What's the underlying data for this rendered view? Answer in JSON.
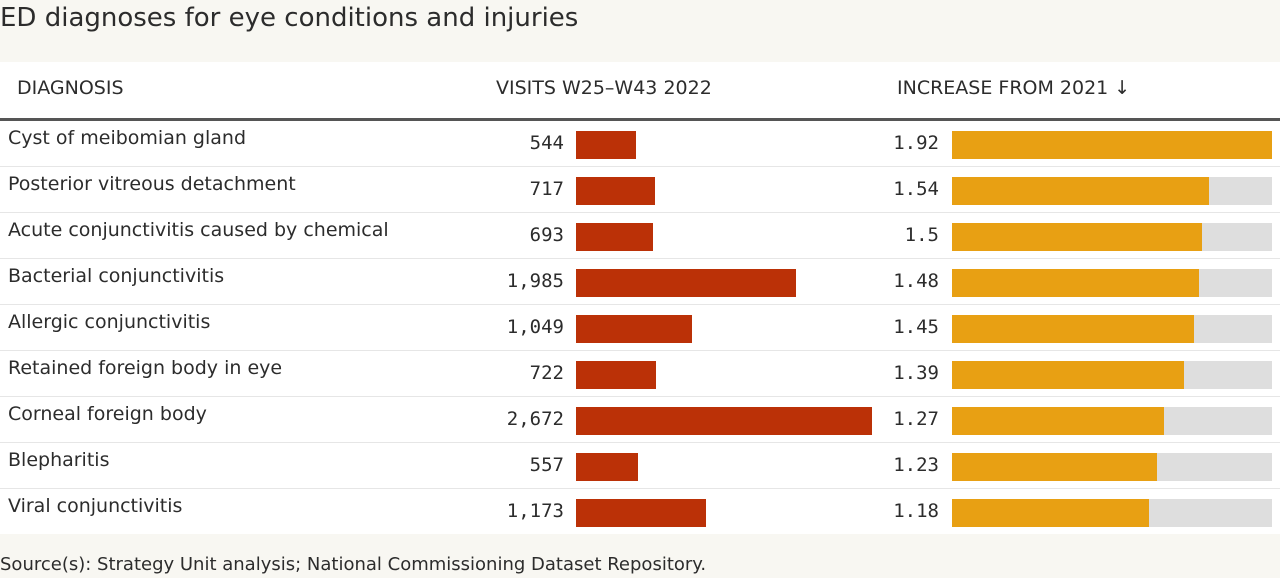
{
  "title": "ED diagnoses for eye conditions and injuries",
  "headers": {
    "diagnosis": "DIAGNOSIS",
    "visits": "VISITS W25–W43 2022",
    "increase": "INCREASE FROM 2021 ↓"
  },
  "source": "Source(s): Strategy Unit analysis; National Commissioning Dataset Repository.",
  "colors": {
    "visits_bar": "#bb3107",
    "increase_bar": "#e8a013",
    "track": "#dedede"
  },
  "chart_data": {
    "type": "table",
    "columns": [
      "DIAGNOSIS",
      "VISITS W25–W43 2022",
      "INCREASE FROM 2021"
    ],
    "sort": "INCREASE FROM 2021 descending",
    "rows": [
      {
        "diagnosis": "Cyst of meibomian gland",
        "visits": 544,
        "visits_label": "544",
        "increase": 1.92,
        "increase_label": "1.92"
      },
      {
        "diagnosis": "Posterior vitreous detachment",
        "visits": 717,
        "visits_label": "717",
        "increase": 1.54,
        "increase_label": "1.54"
      },
      {
        "diagnosis": "Acute conjunctivitis caused by chemical",
        "visits": 693,
        "visits_label": "693",
        "increase": 1.5,
        "increase_label": "1.5"
      },
      {
        "diagnosis": "Bacterial conjunctivitis",
        "visits": 1985,
        "visits_label": "1,985",
        "increase": 1.48,
        "increase_label": "1.48"
      },
      {
        "diagnosis": "Allergic conjunctivitis",
        "visits": 1049,
        "visits_label": "1,049",
        "increase": 1.45,
        "increase_label": "1.45"
      },
      {
        "diagnosis": "Retained foreign body in eye",
        "visits": 722,
        "visits_label": "722",
        "increase": 1.39,
        "increase_label": "1.39"
      },
      {
        "diagnosis": "Corneal foreign body",
        "visits": 2672,
        "visits_label": "2,672",
        "increase": 1.27,
        "increase_label": "1.27"
      },
      {
        "diagnosis": "Blepharitis",
        "visits": 557,
        "visits_label": "557",
        "increase": 1.23,
        "increase_label": "1.23"
      },
      {
        "diagnosis": "Viral conjunctivitis",
        "visits": 1173,
        "visits_label": "1,173",
        "increase": 1.18,
        "increase_label": "1.18"
      }
    ]
  }
}
